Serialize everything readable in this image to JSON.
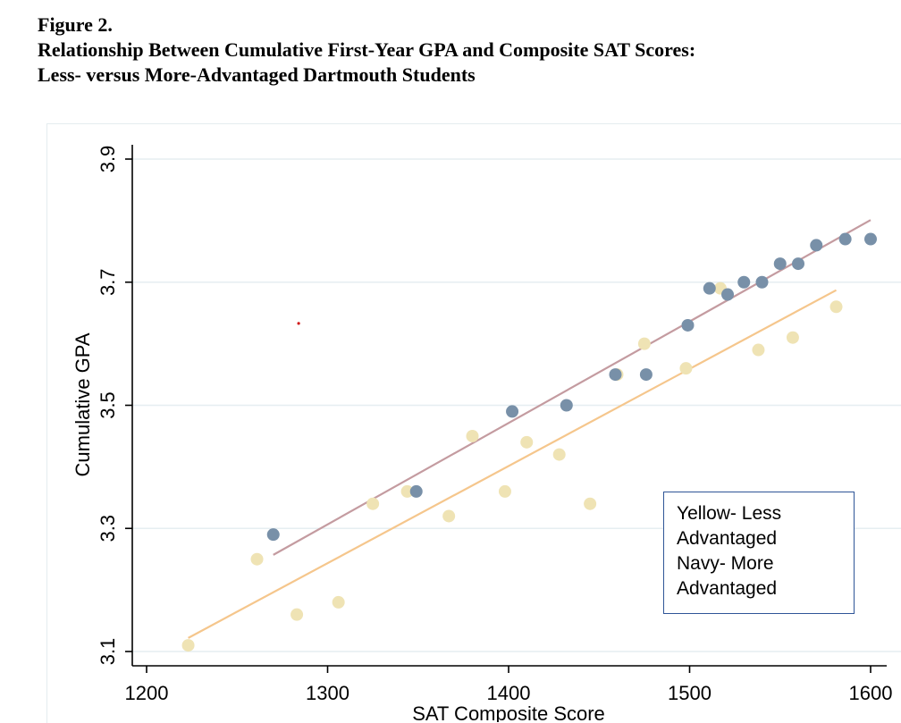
{
  "figure": {
    "label": "Figure 2.",
    "title_line1": "Relationship Between Cumulative First-Year GPA and Composite SAT Scores:",
    "title_line2": "Less- versus More-Advantaged Dartmouth Students"
  },
  "legend": {
    "line1": "Yellow- Less",
    "line2": "Advantaged",
    "line3": "Navy- More",
    "line4": "Advantaged"
  },
  "colors": {
    "less_points": "#efe3b4",
    "more_points": "#7890a8",
    "less_fit": "#f5c68c",
    "more_fit": "#c49ba0",
    "stray_mark": "#d11a1a"
  },
  "chart_data": {
    "type": "scatter",
    "xlabel": "SAT Composite Score",
    "ylabel": "Cumulative GPA",
    "xlim": [
      1200,
      1600
    ],
    "ylim": [
      3.1,
      3.9
    ],
    "xticks": [
      1200,
      1300,
      1400,
      1500,
      1600
    ],
    "yticks": [
      3.1,
      3.3,
      3.5,
      3.7,
      3.9
    ],
    "grid": "horizontal",
    "series": [
      {
        "key": "less",
        "x": [
          1223,
          1261,
          1283,
          1306,
          1325,
          1344,
          1367,
          1380,
          1398,
          1410,
          1428,
          1445,
          1460,
          1475,
          1498,
          1517,
          1538,
          1557,
          1581
        ],
        "y": [
          3.11,
          3.25,
          3.16,
          3.18,
          3.34,
          3.36,
          3.32,
          3.45,
          3.36,
          3.44,
          3.42,
          3.34,
          3.55,
          3.6,
          3.56,
          3.69,
          3.59,
          3.61,
          3.66
        ]
      },
      {
        "key": "more",
        "x": [
          1270,
          1349,
          1402,
          1432,
          1459,
          1476,
          1499,
          1511,
          1521,
          1530,
          1540,
          1550,
          1560,
          1570,
          1586,
          1600
        ],
        "y": [
          3.29,
          3.36,
          3.49,
          3.5,
          3.55,
          3.55,
          3.63,
          3.69,
          3.68,
          3.7,
          3.7,
          3.73,
          3.73,
          3.76,
          3.77,
          3.77
        ]
      }
    ],
    "fit_lines": [
      {
        "key": "less",
        "x": [
          1223,
          1581
        ],
        "y": [
          3.122,
          3.687
        ]
      },
      {
        "key": "more",
        "x": [
          1270,
          1600
        ],
        "y": [
          3.257,
          3.801
        ]
      }
    ],
    "stray_point": {
      "x": 1284,
      "y": 3.633
    }
  }
}
